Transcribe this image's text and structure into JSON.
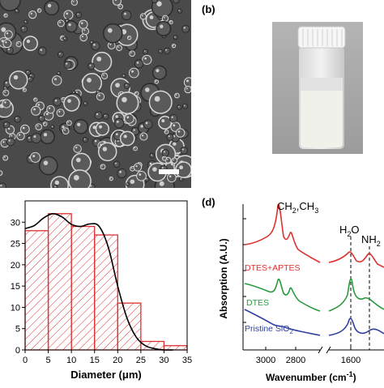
{
  "panels": {
    "b_label": "(b)",
    "d_label": "(d)"
  },
  "colors": {
    "bar_edge": "#e03030",
    "hatch": "#e03030",
    "fit_curve": "#000000",
    "dtes_aptes": "#e03030",
    "dtes": "#2a9a40",
    "pristine": "#2e3fa0",
    "micrograph_bg": "#4a4a4a"
  },
  "chart_data": [
    {
      "type": "bar",
      "panel": "c",
      "bins": [
        0,
        5,
        10,
        15,
        20,
        25,
        30
      ],
      "bin_width": 5,
      "values": [
        28,
        32,
        29,
        27,
        11,
        2,
        1
      ],
      "fit_curve": {
        "x": [
          0,
          2,
          4,
          6,
          8,
          10,
          12,
          14,
          16,
          18,
          20,
          22,
          24,
          26,
          28,
          30,
          32
        ],
        "y": [
          28.5,
          29.2,
          31.0,
          32.0,
          31.2,
          29.5,
          29.0,
          29.6,
          29.0,
          24.0,
          15.0,
          7.5,
          3.0,
          1.0,
          0.3,
          0.0,
          0.0
        ]
      },
      "xlabel": "Diameter (μm)",
      "ylabel": "",
      "xlim": [
        0,
        35
      ],
      "ylim": [
        0,
        35
      ],
      "xticks": [
        0,
        5,
        10,
        15,
        20,
        25,
        30,
        35
      ],
      "yticks": [
        0,
        5,
        10,
        15,
        20,
        25,
        30
      ]
    },
    {
      "type": "line",
      "panel": "d",
      "xlabel": "Wavenumber (cm⁻¹)",
      "ylabel": "Absorption (A.U.)",
      "x_ticks": [
        "3000",
        "2800",
        "1600"
      ],
      "series": [
        {
          "name": "DTES+APTES",
          "color_key": "dtes_aptes"
        },
        {
          "name": "DTES",
          "color_key": "dtes"
        },
        {
          "name": "Pristine SiO₂",
          "color_key": "pristine"
        }
      ],
      "annotations": [
        "CH₂,CH₃",
        "H₂O",
        "NH₂"
      ]
    }
  ],
  "labels": {
    "pristine": "Pristine SiO",
    "pristine_sub": "2",
    "ch_part1": "CH",
    "ch_sub1": "2",
    "ch_part2": ",CH",
    "ch_sub2": "3",
    "h2o_1": "H",
    "h2o_sub": "2",
    "h2o_2": "O",
    "nh2_1": "NH",
    "nh2_sub": "2",
    "wn_main": "Wavenumber (cm",
    "wn_sup": "-1",
    "wn_end": ")"
  }
}
